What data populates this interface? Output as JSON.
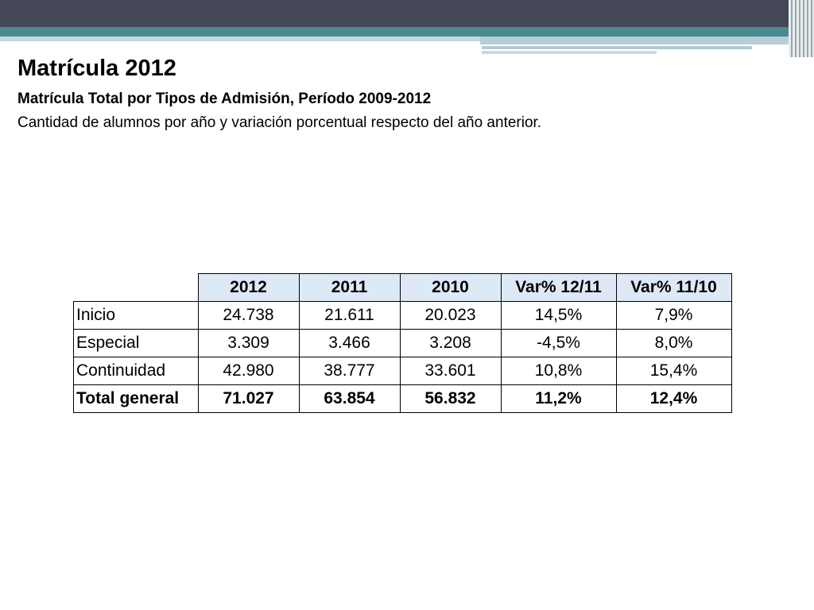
{
  "slide": {
    "title": "Matrícula 2012",
    "subtitle": "Matrícula Total por Tipos de Admisión, Período 2009-2012",
    "description": "Cantidad de alumnos por año y variación porcentual respecto del año anterior."
  },
  "table": {
    "headers": [
      "",
      "2012",
      "2011",
      "2010",
      "Var% 12/11",
      "Var% 11/10"
    ],
    "rows": [
      [
        "Inicio",
        "24.738",
        "21.611",
        "20.023",
        "14,5%",
        "7,9%"
      ],
      [
        "Especial",
        "3.309",
        "3.466",
        "3.208",
        "-4,5%",
        "8,0%"
      ],
      [
        "Continuidad",
        "42.980",
        "38.777",
        "33.601",
        "10,8%",
        "15,4%"
      ],
      [
        "Total general",
        "71.027",
        "63.854",
        "56.832",
        "11,2%",
        "12,4%"
      ]
    ]
  },
  "colors": {
    "top_bar": "#444756",
    "accent_teal": "#4a8a91",
    "header_fill": "#dde9f6"
  }
}
